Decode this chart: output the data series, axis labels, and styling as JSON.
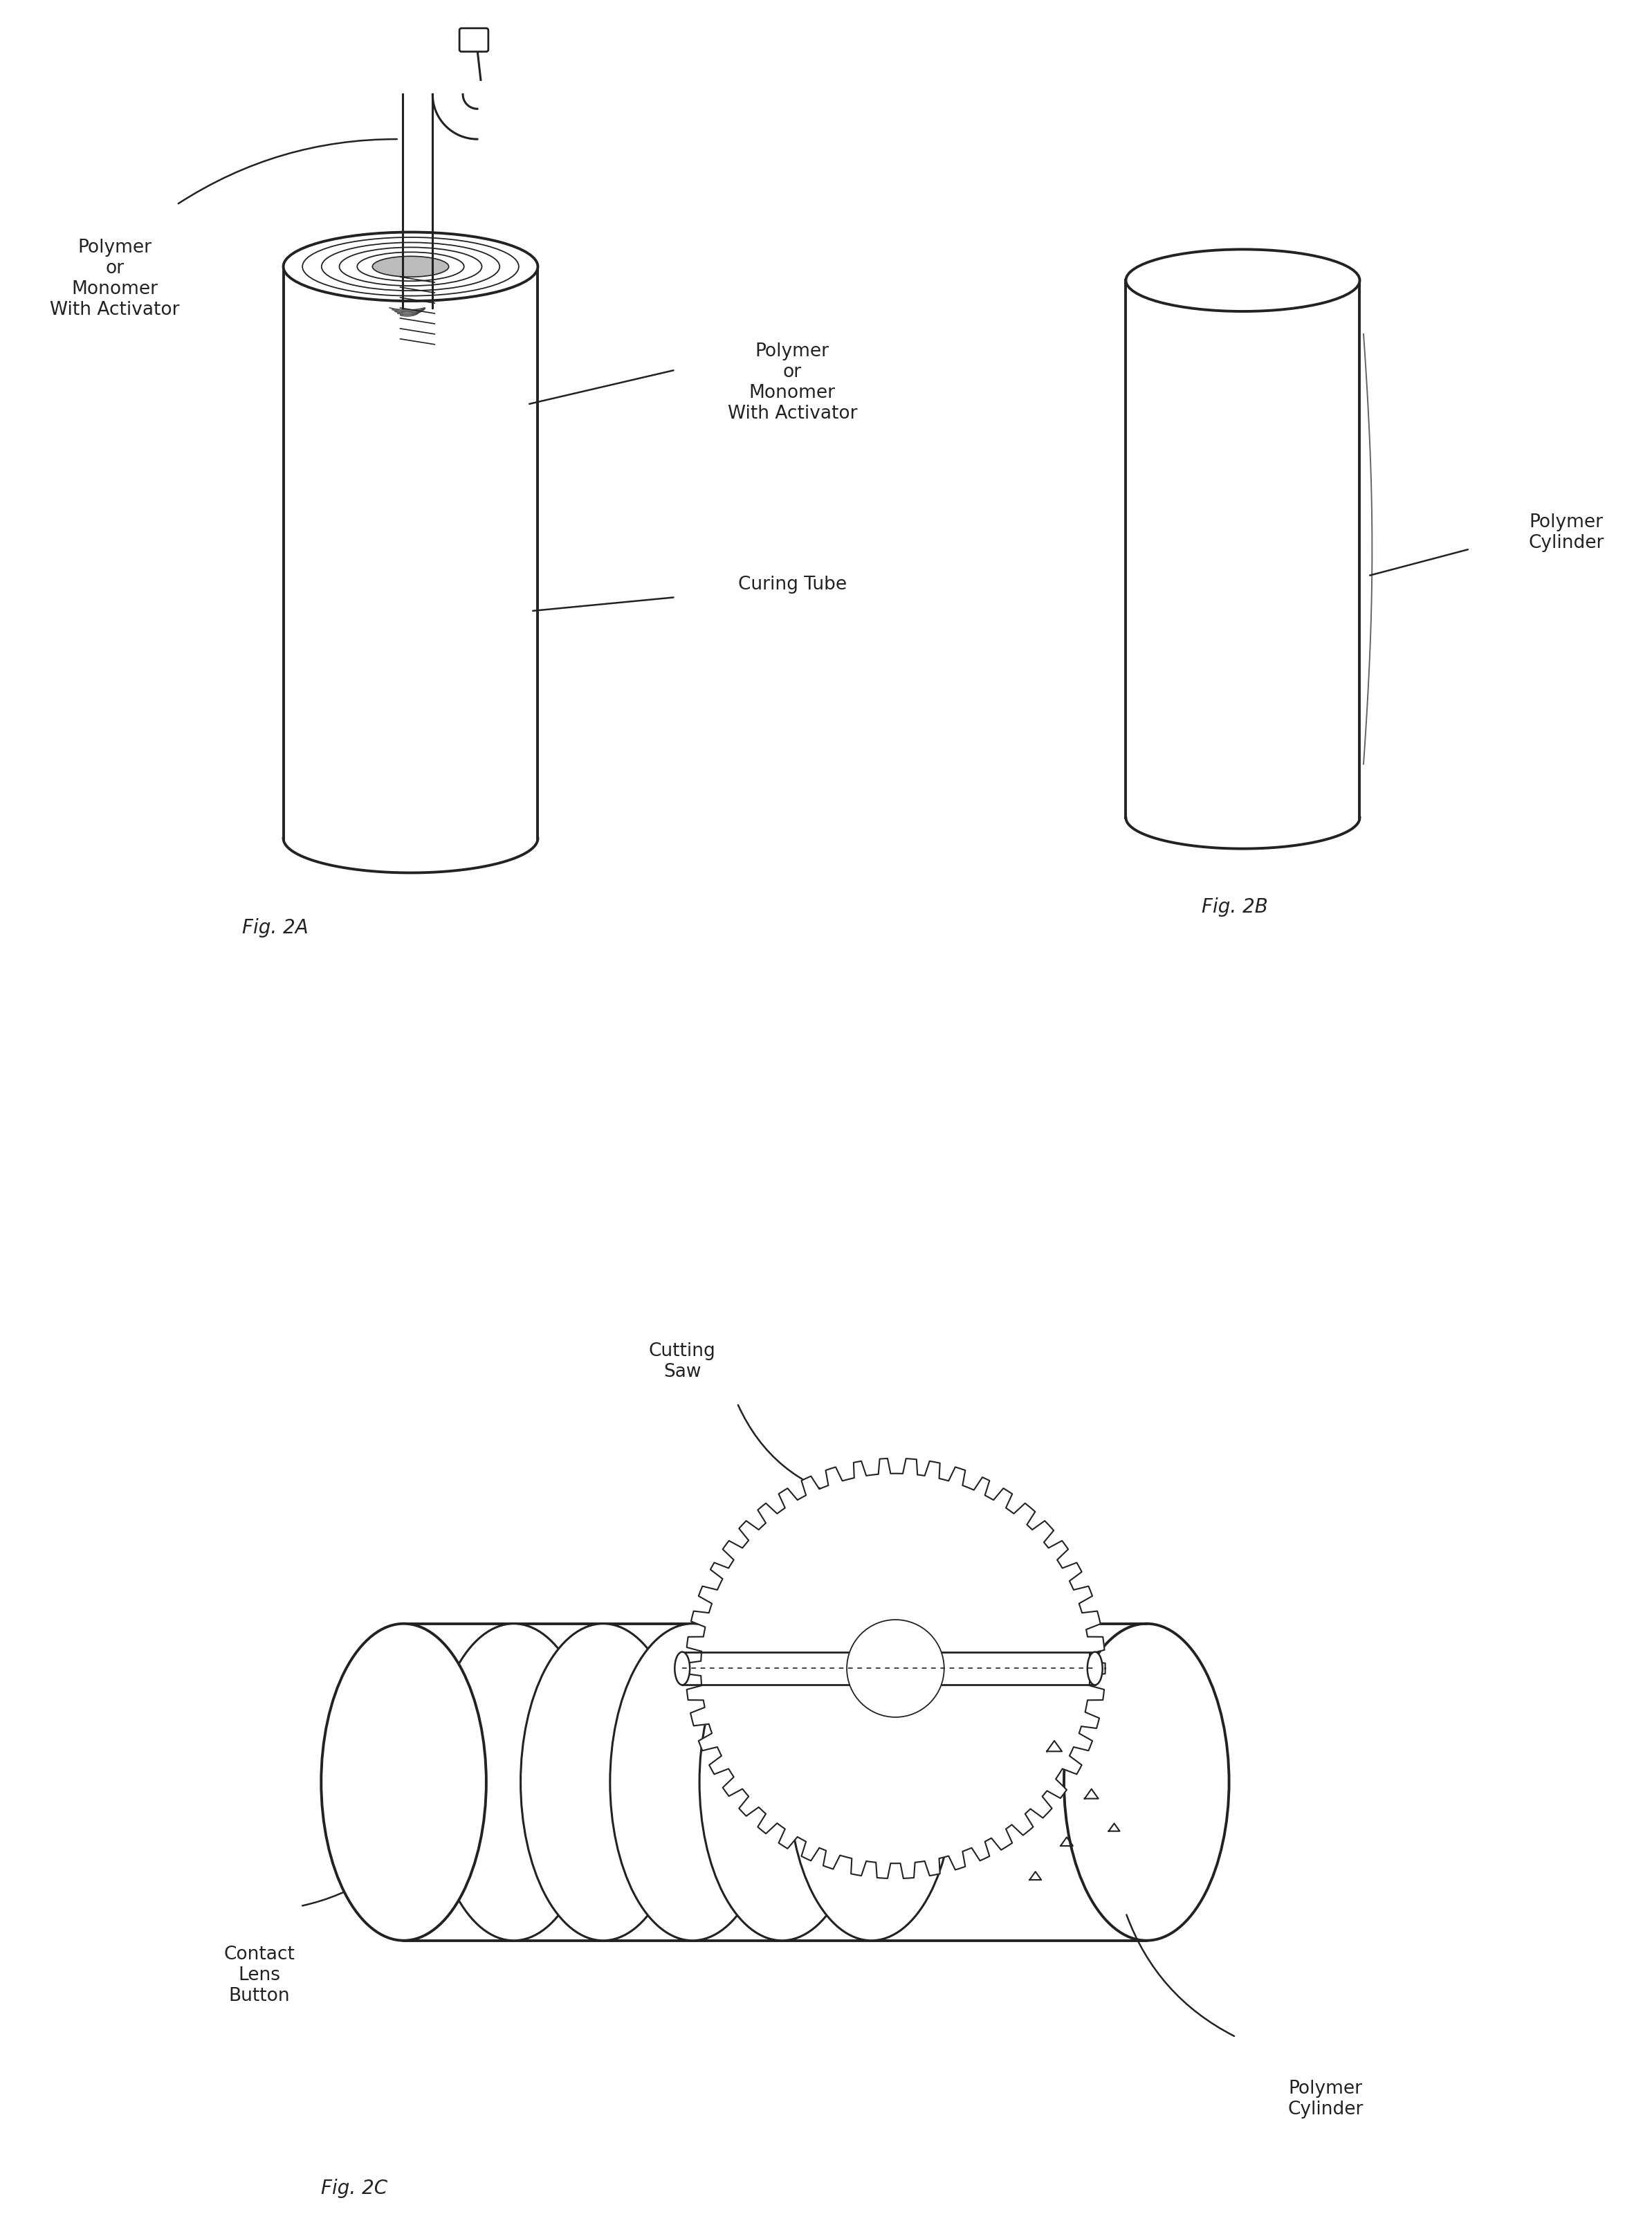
{
  "bg_color": "#ffffff",
  "line_color": "#222222",
  "text_color": "#222222",
  "fig_label_size": 20,
  "annotation_size": 19,
  "fig2a_label": "Fig. 2A",
  "fig2b_label": "Fig. 2B",
  "fig2c_label": "Fig. 2C",
  "labels": {
    "polymer_activator_top": "Polymer\nor\nMonomer\nWith Activator",
    "polymer_activator_right": "Polymer\nor\nMonomer\nWith Activator",
    "curing_tube": "Curing Tube",
    "polymer_cylinder_2b": "Polymer\nCylinder",
    "cutting_saw": "Cutting\nSaw",
    "contact_lens_button": "Contact\nLens\nButton",
    "polymer_cylinder_2c": "Polymer\nCylinder"
  }
}
